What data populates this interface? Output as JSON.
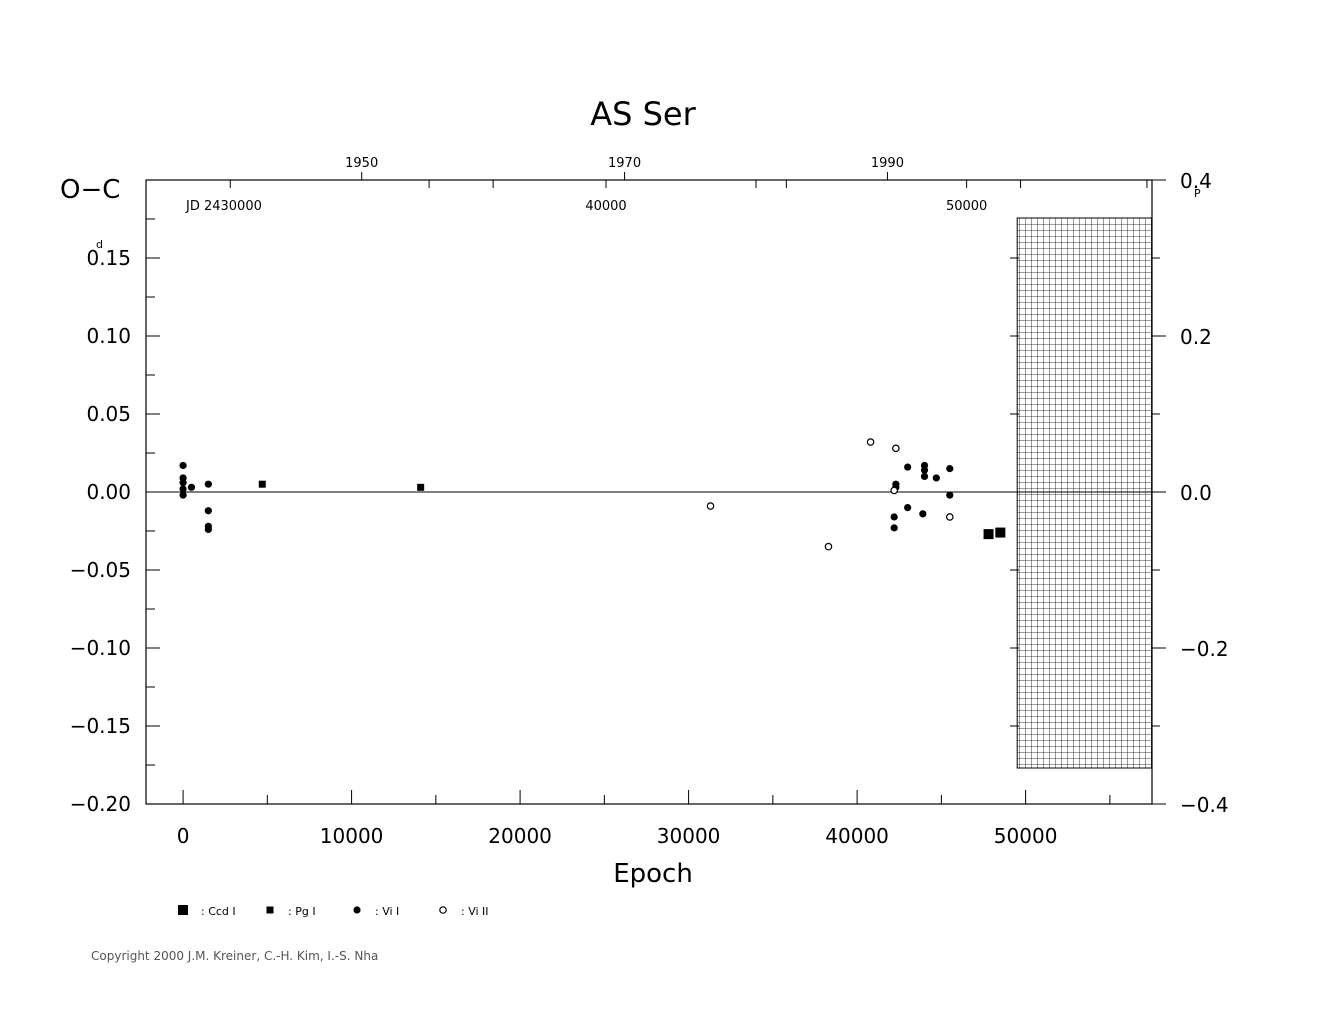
{
  "chart_data": {
    "type": "scatter",
    "title": "AS  Ser",
    "xlabel": "Epoch",
    "ylabel": "O−C",
    "ylabel_unit": "d",
    "right_axis_unit": "P",
    "top_axis_label": "JD  2430000",
    "xlim": [
      -2200,
      57500
    ],
    "ylim": [
      -0.2,
      0.2
    ],
    "right_ylim": [
      -0.4,
      0.4
    ],
    "x_ticks": [
      0,
      10000,
      20000,
      30000,
      40000,
      50000
    ],
    "x_tick_labels": [
      "0",
      "10000",
      "20000",
      "30000",
      "40000",
      "50000"
    ],
    "y_ticks": [
      0.15,
      0.1,
      0.05,
      0.0,
      -0.05,
      -0.1,
      -0.15,
      -0.2
    ],
    "y_tick_labels": [
      "0.15",
      "0.10",
      "0.05",
      "0.00",
      "−0.05",
      "−0.10",
      "−0.15",
      "−0.20"
    ],
    "right_y_ticks": [
      0.4,
      0.2,
      0.0,
      -0.2,
      -0.4
    ],
    "right_y_tick_labels": [
      "0.4",
      "0.2",
      "0.0",
      "−0.2",
      "−0.4"
    ],
    "top_year_ticks": [
      {
        "label": "1950",
        "epoch": 10600
      },
      {
        "label": "1970",
        "epoch": 26200
      },
      {
        "label": "1990",
        "epoch": 41800
      }
    ],
    "top_jd_ticks": [
      {
        "label": "40000",
        "epoch": 25100
      },
      {
        "label": "50000",
        "epoch": 46500
      }
    ],
    "future_region_start": 49500,
    "series": [
      {
        "name": ": Ccd  I",
        "marker": "square-large",
        "points": [
          [
            47800,
            -0.027
          ],
          [
            48500,
            -0.026
          ]
        ]
      },
      {
        "name": ": Pg  I",
        "marker": "square-small",
        "points": [
          [
            4700,
            0.005
          ],
          [
            14100,
            0.003
          ]
        ]
      },
      {
        "name": ": Vi  I",
        "marker": "dot-filled",
        "points": [
          [
            0,
            0.017
          ],
          [
            0,
            0.009
          ],
          [
            0,
            0.006
          ],
          [
            0,
            0.002
          ],
          [
            0,
            -0.002
          ],
          [
            500,
            0.003
          ],
          [
            1500,
            0.005
          ],
          [
            1500,
            -0.012
          ],
          [
            1500,
            -0.022
          ],
          [
            1500,
            -0.024
          ],
          [
            42200,
            -0.016
          ],
          [
            42200,
            -0.023
          ],
          [
            42300,
            0.003
          ],
          [
            42300,
            0.005
          ],
          [
            43000,
            -0.01
          ],
          [
            43000,
            0.016
          ],
          [
            43900,
            -0.014
          ],
          [
            44000,
            0.01
          ],
          [
            44000,
            0.014
          ],
          [
            44000,
            0.017
          ],
          [
            44700,
            0.009
          ],
          [
            45500,
            -0.002
          ],
          [
            45500,
            0.015
          ]
        ]
      },
      {
        "name": ": Vi  II",
        "marker": "circle-open",
        "points": [
          [
            31300,
            -0.009
          ],
          [
            38300,
            -0.035
          ],
          [
            40800,
            0.032
          ],
          [
            42300,
            0.028
          ],
          [
            42200,
            0.001
          ],
          [
            45500,
            -0.016
          ]
        ]
      }
    ]
  },
  "copyright": "Copyright 2000 J.M. Kreiner, C.-H. Kim, I.-S. Nha"
}
